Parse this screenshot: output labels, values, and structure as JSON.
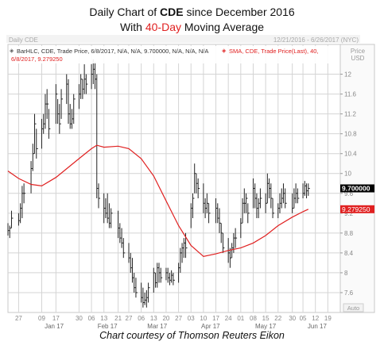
{
  "header": {
    "line1_prefix": "Daily Chart of ",
    "ticker": "CDE",
    "line1_suffix": " since December 2016",
    "line2_prefix": "With ",
    "highlight": "40-Day",
    "line2_suffix": " Moving Average"
  },
  "caption": "Chart courtesy of Thomson Reuters Eikon",
  "panel": {
    "name": "Daily CDE",
    "date_range": "12/21/2016 - 6/26/2017 (NYC)",
    "currency": "Price\nUSD",
    "legend_bar": "BarHLC, CDE, Trade Price, 6/8/2017, N/A, N/A, 9.700000, N/A, N/A, N/A",
    "legend_sma_1": "SMA, CDE, Trade Price(Last),  40,",
    "legend_sma_2": "6/8/2017, 9.279250",
    "last_price_label": "9.700000",
    "sma_price_label": "9.279250",
    "auto_label": "Auto"
  },
  "colors": {
    "bars": "#222222",
    "sma": "#e02020",
    "grid": "#d4d4d4",
    "last_price_box": "#000000",
    "sma_box": "#e02020"
  },
  "chart_data": {
    "type": "line",
    "title": "Daily Chart of CDE since December 2016",
    "subtitle": "With 40-Day Moving Average",
    "ylim": [
      7.2,
      12.6
    ],
    "yticks": [
      7.6,
      8,
      8.4,
      8.8,
      9.2,
      9.6,
      10,
      10.4,
      10.8,
      11.2,
      11.6,
      12
    ],
    "xlim": [
      "2016-12-21",
      "2017-06-26"
    ],
    "xticks": [
      {
        "date": "2016-12-27",
        "label": "27"
      },
      {
        "date": "2017-01-09",
        "label": "09"
      },
      {
        "date": "2017-01-17",
        "label": "17"
      },
      {
        "date": "2017-01-30",
        "label": "30"
      },
      {
        "date": "2017-02-06",
        "label": "06"
      },
      {
        "date": "2017-02-13",
        "label": "13"
      },
      {
        "date": "2017-02-21",
        "label": "21"
      },
      {
        "date": "2017-02-27",
        "label": "27"
      },
      {
        "date": "2017-03-06",
        "label": "06"
      },
      {
        "date": "2017-03-13",
        "label": "13"
      },
      {
        "date": "2017-03-20",
        "label": "20"
      },
      {
        "date": "2017-03-27",
        "label": "27"
      },
      {
        "date": "2017-04-03",
        "label": "03"
      },
      {
        "date": "2017-04-10",
        "label": "10"
      },
      {
        "date": "2017-04-17",
        "label": "17"
      },
      {
        "date": "2017-04-24",
        "label": "24"
      },
      {
        "date": "2017-05-01",
        "label": "01"
      },
      {
        "date": "2017-05-08",
        "label": "08"
      },
      {
        "date": "2017-05-15",
        "label": "15"
      },
      {
        "date": "2017-05-22",
        "label": "22"
      },
      {
        "date": "2017-05-30",
        "label": "30"
      },
      {
        "date": "2017-06-05",
        "label": "05"
      },
      {
        "date": "2017-06-12",
        "label": "12"
      },
      {
        "date": "2017-06-19",
        "label": "19"
      }
    ],
    "month_labels": [
      {
        "date": "2017-01-16",
        "label": "Jan 17"
      },
      {
        "date": "2017-02-15",
        "label": "Feb 17"
      },
      {
        "date": "2017-03-15",
        "label": "Mar 17"
      },
      {
        "date": "2017-04-14",
        "label": "Apr 17"
      },
      {
        "date": "2017-05-15",
        "label": "May 17"
      },
      {
        "date": "2017-06-13",
        "label": "Jun 17"
      }
    ],
    "series": [
      {
        "kind": "hlc_bars",
        "points": [
          {
            "d": "2016-12-21",
            "h": 9.0,
            "l": 8.75,
            "c": 8.85
          },
          {
            "d": "2016-12-22",
            "h": 8.95,
            "l": 8.7,
            "c": 8.9
          },
          {
            "d": "2016-12-23",
            "h": 9.25,
            "l": 8.9,
            "c": 9.1
          },
          {
            "d": "2016-12-27",
            "h": 9.2,
            "l": 8.95,
            "c": 9.05
          },
          {
            "d": "2016-12-28",
            "h": 9.4,
            "l": 9.0,
            "c": 9.3
          },
          {
            "d": "2016-12-29",
            "h": 9.75,
            "l": 9.1,
            "c": 9.6
          },
          {
            "d": "2016-12-30",
            "h": 9.8,
            "l": 9.4,
            "c": 9.6
          },
          {
            "d": "2017-01-03",
            "h": 10.25,
            "l": 9.6,
            "c": 10.1
          },
          {
            "d": "2017-01-04",
            "h": 10.6,
            "l": 10.05,
            "c": 10.4
          },
          {
            "d": "2017-01-05",
            "h": 11.2,
            "l": 10.4,
            "c": 11.0
          },
          {
            "d": "2017-01-06",
            "h": 10.9,
            "l": 10.3,
            "c": 10.5
          },
          {
            "d": "2017-01-09",
            "h": 11.1,
            "l": 10.5,
            "c": 10.9
          },
          {
            "d": "2017-01-10",
            "h": 11.2,
            "l": 10.8,
            "c": 11.0
          },
          {
            "d": "2017-01-11",
            "h": 11.6,
            "l": 10.9,
            "c": 11.4
          },
          {
            "d": "2017-01-12",
            "h": 11.7,
            "l": 11.1,
            "c": 11.4
          },
          {
            "d": "2017-01-13",
            "h": 11.3,
            "l": 10.7,
            "c": 10.9
          },
          {
            "d": "2017-01-17",
            "h": 11.8,
            "l": 11.0,
            "c": 11.6
          },
          {
            "d": "2017-01-18",
            "h": 11.5,
            "l": 11.0,
            "c": 11.2
          },
          {
            "d": "2017-01-19",
            "h": 11.4,
            "l": 10.8,
            "c": 11.0
          },
          {
            "d": "2017-01-20",
            "h": 11.7,
            "l": 11.1,
            "c": 11.5
          },
          {
            "d": "2017-01-23",
            "h": 12.0,
            "l": 11.4,
            "c": 11.8
          },
          {
            "d": "2017-01-24",
            "h": 11.9,
            "l": 11.0,
            "c": 11.2
          },
          {
            "d": "2017-01-25",
            "h": 11.4,
            "l": 10.9,
            "c": 11.0
          },
          {
            "d": "2017-01-26",
            "h": 11.3,
            "l": 10.9,
            "c": 11.1
          },
          {
            "d": "2017-01-27",
            "h": 11.6,
            "l": 11.0,
            "c": 11.5
          },
          {
            "d": "2017-01-30",
            "h": 11.8,
            "l": 11.3,
            "c": 11.6
          },
          {
            "d": "2017-01-31",
            "h": 12.0,
            "l": 11.5,
            "c": 11.9
          },
          {
            "d": "2017-02-01",
            "h": 11.9,
            "l": 11.5,
            "c": 11.7
          },
          {
            "d": "2017-02-02",
            "h": 12.2,
            "l": 11.6,
            "c": 11.9
          },
          {
            "d": "2017-02-03",
            "h": 12.0,
            "l": 11.6,
            "c": 11.8
          },
          {
            "d": "2017-02-06",
            "h": 12.2,
            "l": 11.7,
            "c": 12.0
          },
          {
            "d": "2017-02-07",
            "h": 12.3,
            "l": 11.8,
            "c": 12.1
          },
          {
            "d": "2017-02-08",
            "h": 12.25,
            "l": 11.7,
            "c": 11.9
          },
          {
            "d": "2017-02-09",
            "h": 12.0,
            "l": 9.5,
            "c": 9.7
          },
          {
            "d": "2017-02-10",
            "h": 9.8,
            "l": 9.3,
            "c": 9.5
          },
          {
            "d": "2017-02-13",
            "h": 9.6,
            "l": 9.0,
            "c": 9.3
          },
          {
            "d": "2017-02-14",
            "h": 9.5,
            "l": 9.1,
            "c": 9.2
          },
          {
            "d": "2017-02-15",
            "h": 9.6,
            "l": 9.0,
            "c": 9.1
          },
          {
            "d": "2017-02-16",
            "h": 9.4,
            "l": 8.9,
            "c": 9.0
          },
          {
            "d": "2017-02-17",
            "h": 9.3,
            "l": 8.9,
            "c": 9.2
          },
          {
            "d": "2017-02-21",
            "h": 9.25,
            "l": 8.7,
            "c": 8.9
          },
          {
            "d": "2017-02-22",
            "h": 9.0,
            "l": 8.6,
            "c": 8.7
          },
          {
            "d": "2017-02-23",
            "h": 8.9,
            "l": 8.5,
            "c": 8.6
          },
          {
            "d": "2017-02-24",
            "h": 8.7,
            "l": 8.3,
            "c": 8.4
          },
          {
            "d": "2017-02-27",
            "h": 8.6,
            "l": 8.2,
            "c": 8.3
          },
          {
            "d": "2017-02-28",
            "h": 8.4,
            "l": 8.0,
            "c": 8.1
          },
          {
            "d": "2017-03-01",
            "h": 8.3,
            "l": 7.8,
            "c": 7.9
          },
          {
            "d": "2017-03-02",
            "h": 8.0,
            "l": 7.6,
            "c": 7.7
          },
          {
            "d": "2017-03-03",
            "h": 7.9,
            "l": 7.5,
            "c": 7.6
          },
          {
            "d": "2017-03-06",
            "h": 7.8,
            "l": 7.4,
            "c": 7.5
          },
          {
            "d": "2017-03-07",
            "h": 7.7,
            "l": 7.3,
            "c": 7.4
          },
          {
            "d": "2017-03-08",
            "h": 7.6,
            "l": 7.35,
            "c": 7.45
          },
          {
            "d": "2017-03-09",
            "h": 7.65,
            "l": 7.3,
            "c": 7.5
          },
          {
            "d": "2017-03-10",
            "h": 7.8,
            "l": 7.4,
            "c": 7.7
          },
          {
            "d": "2017-03-13",
            "h": 8.1,
            "l": 7.6,
            "c": 8.0
          },
          {
            "d": "2017-03-14",
            "h": 8.0,
            "l": 7.7,
            "c": 7.8
          },
          {
            "d": "2017-03-15",
            "h": 8.2,
            "l": 7.7,
            "c": 8.1
          },
          {
            "d": "2017-03-16",
            "h": 8.2,
            "l": 7.8,
            "c": 8.0
          },
          {
            "d": "2017-03-17",
            "h": 8.1,
            "l": 7.8,
            "c": 7.9
          },
          {
            "d": "2017-03-20",
            "h": 8.1,
            "l": 7.85,
            "c": 8.0
          },
          {
            "d": "2017-03-21",
            "h": 8.1,
            "l": 7.8,
            "c": 7.9
          },
          {
            "d": "2017-03-22",
            "h": 8.0,
            "l": 7.75,
            "c": 7.85
          },
          {
            "d": "2017-03-23",
            "h": 8.05,
            "l": 7.8,
            "c": 7.95
          },
          {
            "d": "2017-03-24",
            "h": 8.0,
            "l": 7.75,
            "c": 7.85
          },
          {
            "d": "2017-03-27",
            "h": 8.2,
            "l": 7.8,
            "c": 8.1
          },
          {
            "d": "2017-03-28",
            "h": 8.5,
            "l": 8.0,
            "c": 8.4
          },
          {
            "d": "2017-03-29",
            "h": 8.6,
            "l": 8.2,
            "c": 8.5
          },
          {
            "d": "2017-03-30",
            "h": 8.7,
            "l": 8.3,
            "c": 8.6
          },
          {
            "d": "2017-03-31",
            "h": 8.8,
            "l": 8.3,
            "c": 8.5
          },
          {
            "d": "2017-04-03",
            "h": 9.4,
            "l": 8.9,
            "c": 9.3
          },
          {
            "d": "2017-04-04",
            "h": 9.6,
            "l": 9.1,
            "c": 9.5
          },
          {
            "d": "2017-04-05",
            "h": 10.2,
            "l": 9.6,
            "c": 10.0
          },
          {
            "d": "2017-04-06",
            "h": 10.0,
            "l": 9.6,
            "c": 9.8
          },
          {
            "d": "2017-04-07",
            "h": 9.9,
            "l": 9.5,
            "c": 9.7
          },
          {
            "d": "2017-04-10",
            "h": 9.8,
            "l": 9.2,
            "c": 9.4
          },
          {
            "d": "2017-04-11",
            "h": 9.5,
            "l": 9.1,
            "c": 9.3
          },
          {
            "d": "2017-04-12",
            "h": 9.6,
            "l": 9.2,
            "c": 9.4
          },
          {
            "d": "2017-04-13",
            "h": 9.4,
            "l": 9.0,
            "c": 9.2
          },
          {
            "d": "2017-04-17",
            "h": 9.5,
            "l": 9.0,
            "c": 9.3
          },
          {
            "d": "2017-04-18",
            "h": 9.4,
            "l": 9.0,
            "c": 9.1
          },
          {
            "d": "2017-04-19",
            "h": 9.3,
            "l": 8.8,
            "c": 9.0
          },
          {
            "d": "2017-04-20",
            "h": 9.0,
            "l": 8.6,
            "c": 8.8
          },
          {
            "d": "2017-04-21",
            "h": 8.8,
            "l": 8.4,
            "c": 8.5
          },
          {
            "d": "2017-04-24",
            "h": 8.7,
            "l": 8.2,
            "c": 8.4
          },
          {
            "d": "2017-04-25",
            "h": 8.5,
            "l": 8.1,
            "c": 8.3
          },
          {
            "d": "2017-04-26",
            "h": 8.6,
            "l": 8.3,
            "c": 8.5
          },
          {
            "d": "2017-04-27",
            "h": 8.8,
            "l": 8.4,
            "c": 8.7
          },
          {
            "d": "2017-04-28",
            "h": 8.9,
            "l": 8.5,
            "c": 8.7
          },
          {
            "d": "2017-05-01",
            "h": 9.1,
            "l": 8.7,
            "c": 9.0
          },
          {
            "d": "2017-05-02",
            "h": 9.5,
            "l": 9.0,
            "c": 9.4
          },
          {
            "d": "2017-05-03",
            "h": 9.7,
            "l": 9.2,
            "c": 9.4
          },
          {
            "d": "2017-05-04",
            "h": 9.6,
            "l": 9.2,
            "c": 9.5
          },
          {
            "d": "2017-05-05",
            "h": 9.4,
            "l": 9.0,
            "c": 9.2
          },
          {
            "d": "2017-05-08",
            "h": 9.9,
            "l": 9.3,
            "c": 9.7
          },
          {
            "d": "2017-05-09",
            "h": 9.8,
            "l": 9.3,
            "c": 9.5
          },
          {
            "d": "2017-05-10",
            "h": 9.6,
            "l": 9.1,
            "c": 9.3
          },
          {
            "d": "2017-05-11",
            "h": 9.5,
            "l": 9.1,
            "c": 9.4
          },
          {
            "d": "2017-05-12",
            "h": 9.7,
            "l": 9.3,
            "c": 9.5
          },
          {
            "d": "2017-05-15",
            "h": 9.6,
            "l": 9.2,
            "c": 9.4
          },
          {
            "d": "2017-05-16",
            "h": 10.0,
            "l": 9.4,
            "c": 9.8
          },
          {
            "d": "2017-05-17",
            "h": 9.9,
            "l": 9.5,
            "c": 9.7
          },
          {
            "d": "2017-05-18",
            "h": 9.8,
            "l": 9.3,
            "c": 9.5
          },
          {
            "d": "2017-05-19",
            "h": 9.5,
            "l": 9.1,
            "c": 9.2
          },
          {
            "d": "2017-05-22",
            "h": 9.4,
            "l": 9.1,
            "c": 9.3
          },
          {
            "d": "2017-05-23",
            "h": 9.6,
            "l": 9.2,
            "c": 9.4
          },
          {
            "d": "2017-05-24",
            "h": 9.7,
            "l": 9.3,
            "c": 9.5
          },
          {
            "d": "2017-05-25",
            "h": 9.8,
            "l": 9.4,
            "c": 9.6
          },
          {
            "d": "2017-05-26",
            "h": 9.7,
            "l": 9.3,
            "c": 9.4
          },
          {
            "d": "2017-05-30",
            "h": 9.6,
            "l": 9.2,
            "c": 9.3
          },
          {
            "d": "2017-05-31",
            "h": 9.7,
            "l": 9.3,
            "c": 9.5
          },
          {
            "d": "2017-06-01",
            "h": 9.8,
            "l": 9.4,
            "c": 9.6
          },
          {
            "d": "2017-06-02",
            "h": 9.7,
            "l": 9.4,
            "c": 9.5
          },
          {
            "d": "2017-06-05",
            "h": 9.8,
            "l": 9.5,
            "c": 9.6
          },
          {
            "d": "2017-06-06",
            "h": 9.85,
            "l": 9.55,
            "c": 9.75
          },
          {
            "d": "2017-06-07",
            "h": 9.8,
            "l": 9.5,
            "c": 9.65
          },
          {
            "d": "2017-06-08",
            "h": 9.8,
            "l": 9.55,
            "c": 9.7
          }
        ]
      },
      {
        "kind": "sma",
        "points": [
          {
            "d": "2016-12-21",
            "v": 10.05
          },
          {
            "d": "2016-12-27",
            "v": 9.9
          },
          {
            "d": "2017-01-03",
            "v": 9.78
          },
          {
            "d": "2017-01-09",
            "v": 9.75
          },
          {
            "d": "2017-01-17",
            "v": 9.92
          },
          {
            "d": "2017-01-30",
            "v": 10.3
          },
          {
            "d": "2017-02-06",
            "v": 10.5
          },
          {
            "d": "2017-02-09",
            "v": 10.57
          },
          {
            "d": "2017-02-13",
            "v": 10.53
          },
          {
            "d": "2017-02-21",
            "v": 10.55
          },
          {
            "d": "2017-02-27",
            "v": 10.5
          },
          {
            "d": "2017-03-06",
            "v": 10.3
          },
          {
            "d": "2017-03-13",
            "v": 9.95
          },
          {
            "d": "2017-03-20",
            "v": 9.45
          },
          {
            "d": "2017-03-27",
            "v": 8.95
          },
          {
            "d": "2017-04-03",
            "v": 8.55
          },
          {
            "d": "2017-04-10",
            "v": 8.33
          },
          {
            "d": "2017-04-17",
            "v": 8.38
          },
          {
            "d": "2017-04-24",
            "v": 8.45
          },
          {
            "d": "2017-05-01",
            "v": 8.5
          },
          {
            "d": "2017-05-08",
            "v": 8.6
          },
          {
            "d": "2017-05-15",
            "v": 8.75
          },
          {
            "d": "2017-05-22",
            "v": 8.95
          },
          {
            "d": "2017-05-30",
            "v": 9.12
          },
          {
            "d": "2017-06-05",
            "v": 9.23
          },
          {
            "d": "2017-06-08",
            "v": 9.28
          }
        ]
      }
    ]
  }
}
